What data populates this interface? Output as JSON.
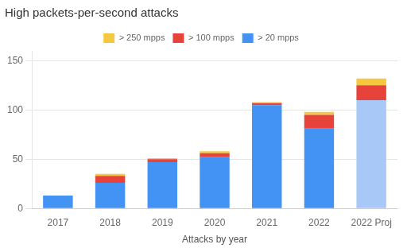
{
  "chart_data": {
    "type": "bar",
    "title": "High packets-per-second attacks",
    "xlabel": "Attacks by year",
    "categories": [
      "2017",
      "2018",
      "2019",
      "2020",
      "2021",
      "2022",
      "2022 Proj"
    ],
    "series": [
      {
        "name": "> 20 mpps",
        "color": "#4393f5",
        "colors": [
          "#4393f5",
          "#4393f5",
          "#4393f5",
          "#4393f5",
          "#4393f5",
          "#4393f5",
          "#a8c8f8"
        ],
        "values": [
          13,
          26,
          47,
          52,
          105,
          81,
          110
        ]
      },
      {
        "name": "> 100 mpps",
        "color": "#e8433a",
        "values": [
          0,
          7,
          3,
          4,
          2,
          14,
          15
        ]
      },
      {
        "name": "> 250 mpps",
        "color": "#f5c842",
        "values": [
          0,
          2,
          1,
          2,
          1,
          3,
          7
        ]
      }
    ],
    "ylim": [
      0,
      160
    ],
    "yticks": [
      0,
      50,
      100,
      150
    ],
    "grid": true,
    "stacked": true,
    "legend": "top"
  }
}
